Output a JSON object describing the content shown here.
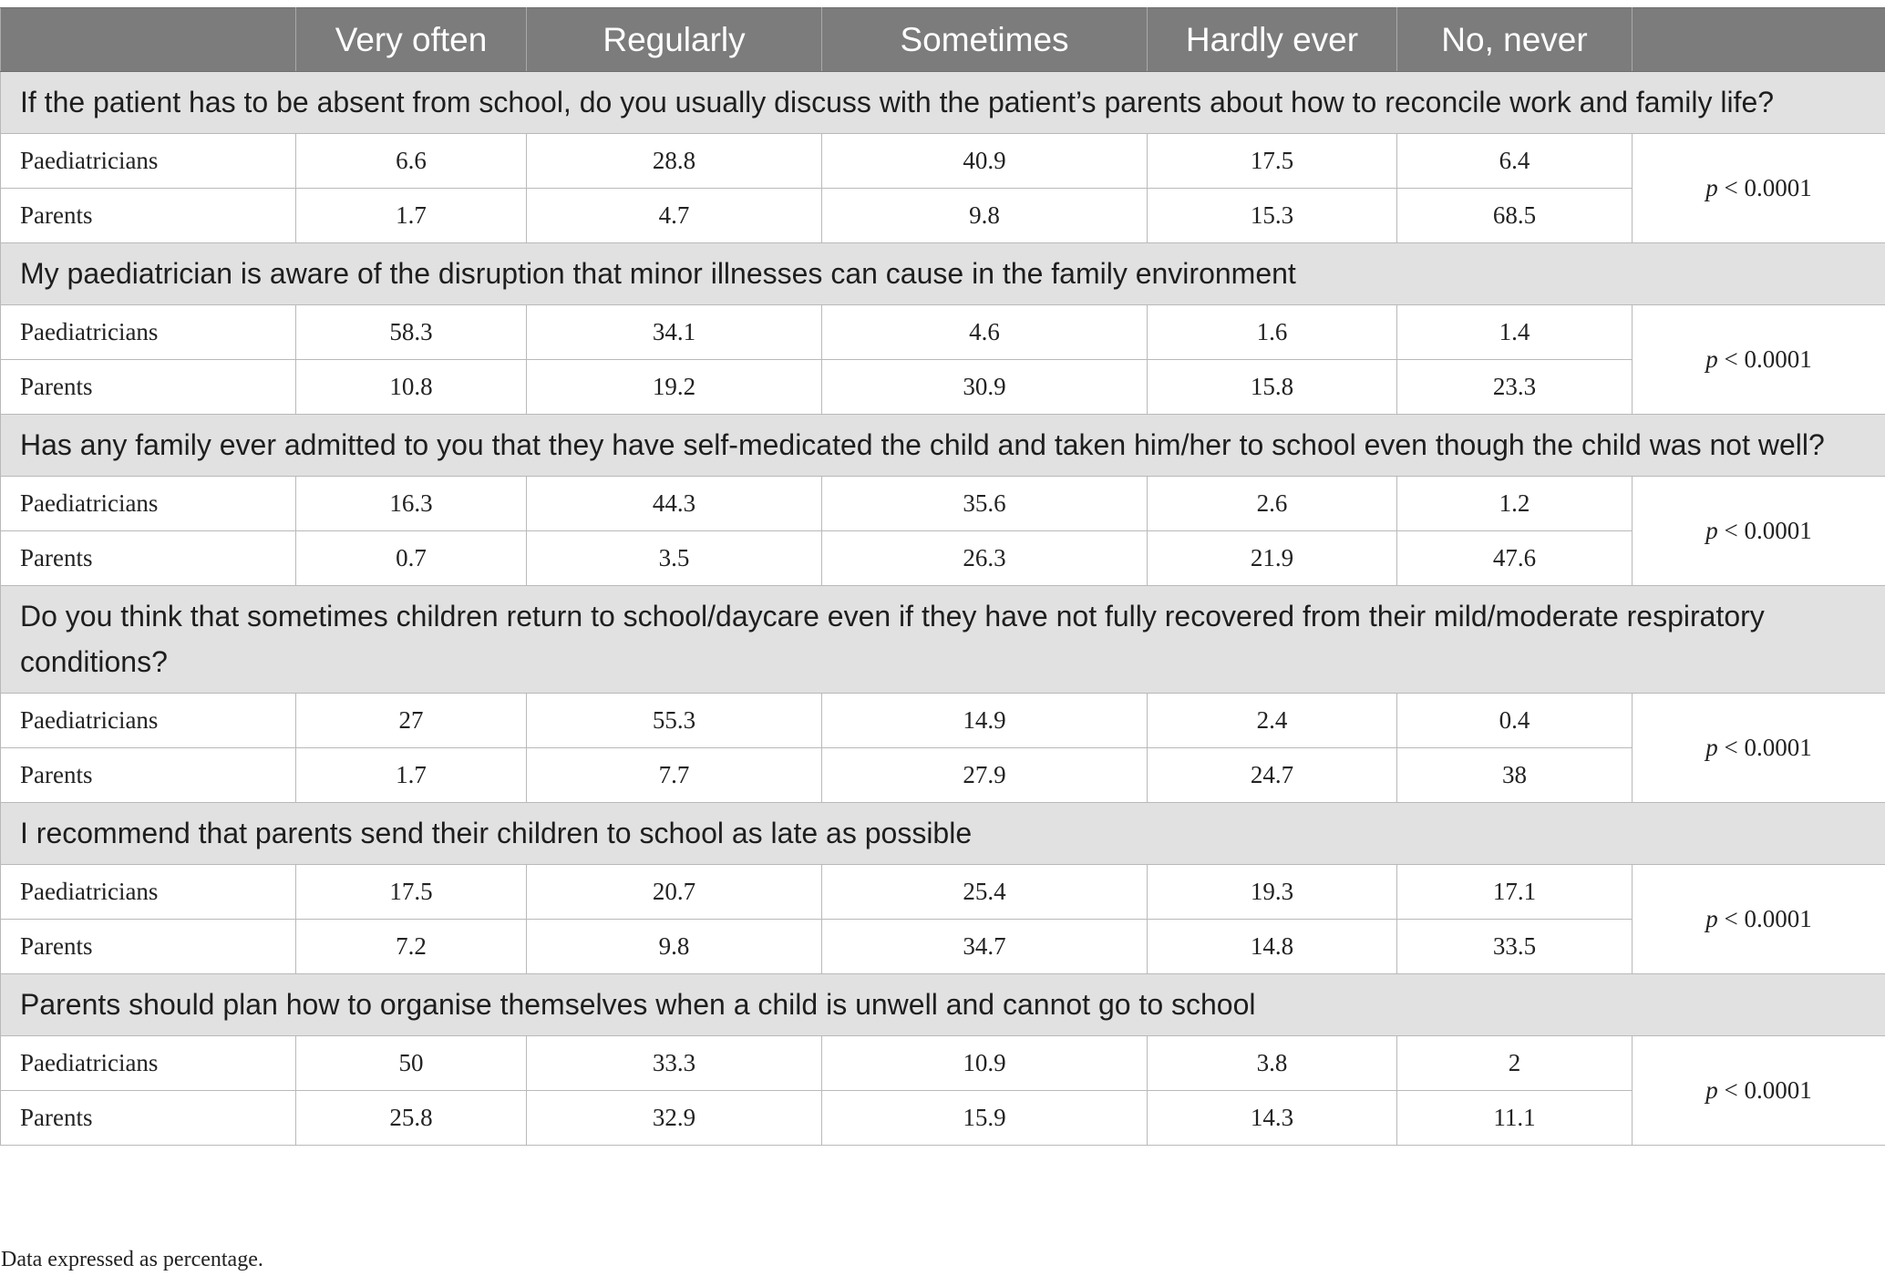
{
  "table": {
    "headers": [
      "",
      "Very often",
      "Regularly",
      "Sometimes",
      "Hardly ever",
      "No, never",
      ""
    ],
    "groups": [
      {
        "question": "If the patient has to be absent from school, do you usually discuss with the patient’s parents about how to reconcile work and family life?",
        "rows": [
          {
            "label": "Paediatricians",
            "values": [
              "6.6",
              "28.8",
              "40.9",
              "17.5",
              "6.4"
            ]
          },
          {
            "label": "Parents",
            "values": [
              "1.7",
              "4.7",
              "9.8",
              "15.3",
              "68.5"
            ]
          }
        ],
        "p_italic": "p",
        "p_rest": " < 0.0001"
      },
      {
        "question": "My paediatrician is aware of the disruption that minor illnesses can cause in the family environment",
        "rows": [
          {
            "label": "Paediatricians",
            "values": [
              "58.3",
              "34.1",
              "4.6",
              "1.6",
              "1.4"
            ]
          },
          {
            "label": "Parents",
            "values": [
              "10.8",
              "19.2",
              "30.9",
              "15.8",
              "23.3"
            ]
          }
        ],
        "p_italic": "p",
        "p_rest": " < 0.0001"
      },
      {
        "question": "Has any family ever admitted to you that they have self-medicated the child and taken him/her to school even though the child was not well?",
        "rows": [
          {
            "label": "Paediatricians",
            "values": [
              "16.3",
              "44.3",
              "35.6",
              "2.6",
              "1.2"
            ]
          },
          {
            "label": "Parents",
            "values": [
              "0.7",
              "3.5",
              "26.3",
              "21.9",
              "47.6"
            ]
          }
        ],
        "p_italic": "p",
        "p_rest": " < 0.0001"
      },
      {
        "question": "Do you think that sometimes children return to school/daycare even if they have not fully recovered from their mild/moderate respiratory conditions?",
        "rows": [
          {
            "label": "Paediatricians",
            "values": [
              "27",
              "55.3",
              "14.9",
              "2.4",
              "0.4"
            ]
          },
          {
            "label": "Parents",
            "values": [
              "1.7",
              "7.7",
              "27.9",
              "24.7",
              "38"
            ]
          }
        ],
        "p_italic": "p",
        "p_rest": " < 0.0001"
      },
      {
        "question": "I recommend that parents send their children to school as late as possible",
        "rows": [
          {
            "label": "Paediatricians",
            "values": [
              "17.5",
              "20.7",
              "25.4",
              "19.3",
              "17.1"
            ]
          },
          {
            "label": "Parents",
            "values": [
              "7.2",
              "9.8",
              "34.7",
              "14.8",
              "33.5"
            ]
          }
        ],
        "p_italic": "p",
        "p_rest": " < 0.0001"
      },
      {
        "question": "Parents should plan how to organise themselves when a child is unwell and cannot go to school",
        "rows": [
          {
            "label": "Paediatricians",
            "values": [
              "50",
              "33.3",
              "10.9",
              "3.8",
              "2"
            ]
          },
          {
            "label": "Parents",
            "values": [
              "25.8",
              "32.9",
              "15.9",
              "14.3",
              "11.1"
            ]
          }
        ],
        "p_italic": "p",
        "p_rest": " < 0.0001"
      }
    ]
  },
  "footnote": "Data expressed as percentage."
}
